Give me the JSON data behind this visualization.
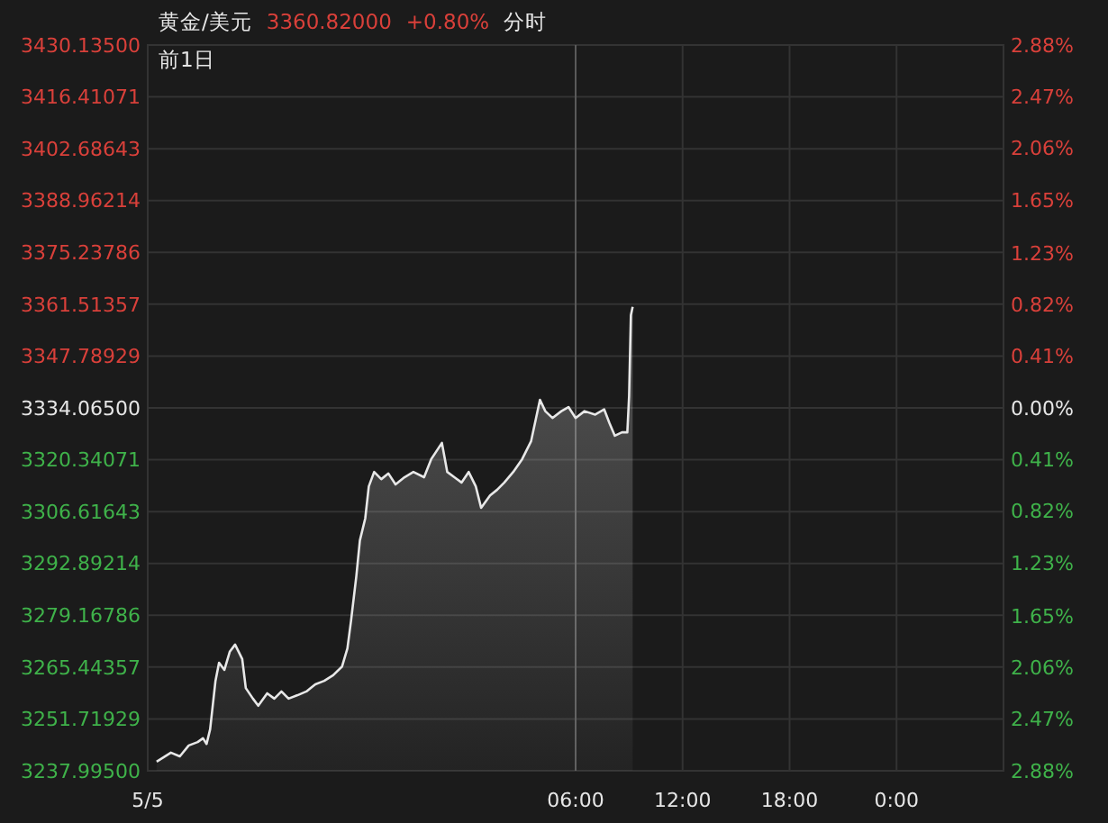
{
  "chart_data": {
    "type": "area",
    "title": "黄金/美元",
    "subtitle": "前1日",
    "annotations": [
      "3360.82000",
      "+0.80%",
      "分时"
    ],
    "x": [
      "--05-05T06:30",
      "--05-05T07:18",
      "--05-05T07:48",
      "--05-05T08:18",
      "--05-05T08:48",
      "--05-05T09:06",
      "--05-05T09:18",
      "--05-05T09:30",
      "--05-05T09:48",
      "--05-05T10:00",
      "--05-05T10:18",
      "--05-05T10:36",
      "--05-05T10:54",
      "--05-05T11:18",
      "--05-05T11:30",
      "--05-05T11:54",
      "--05-05T12:12",
      "--05-05T12:42",
      "--05-05T13:06",
      "--05-05T13:30",
      "--05-05T13:54",
      "--05-05T14:24",
      "--05-05T14:54",
      "--05-05T15:24",
      "--05-05T15:54",
      "--05-05T16:24",
      "--05-05T16:54",
      "--05-05T17:12",
      "--05-05T17:24",
      "--05-05T17:42",
      "--05-05T17:54",
      "--05-05T18:12",
      "--05-05T18:24",
      "--05-05T18:42",
      "--05-05T19:06",
      "--05-05T19:30",
      "--05-05T19:54",
      "--05-05T20:24",
      "--05-05T20:54",
      "--05-05T21:30",
      "--05-05T21:54",
      "--05-05T22:30",
      "--05-05T22:48",
      "--05-05T23:12",
      "--05-05T23:36",
      "--05-06T00:00",
      "--05-06T00:24",
      "--05-06T00:42",
      "--05-06T01:12",
      "--05-06T01:36",
      "--05-06T02:00",
      "--05-06T02:30",
      "--05-06T03:00",
      "--05-06T03:30",
      "--05-06T04:00",
      "--05-06T04:18",
      "--05-06T04:42",
      "--05-06T05:12",
      "--05-06T05:36",
      "--05-06T06:00",
      "--05-06T06:30",
      "--05-06T07:06",
      "--05-06T07:36",
      "--05-06T07:54",
      "--05-06T08:12",
      "--05-06T08:36",
      "--05-06T08:54",
      "--05-06T09:00",
      "--05-06T09:06",
      "--05-06T09:12"
    ],
    "series": [
      {
        "color": "#e8e8e8",
        "values": [
          3240.4,
          3242.8,
          3241.8,
          3244.7,
          3245.6,
          3246.6,
          3245.1,
          3249.0,
          3261.8,
          3266.6,
          3264.7,
          3269.5,
          3271.4,
          3267.6,
          3259.9,
          3257.1,
          3255.2,
          3258.5,
          3257.1,
          3259.0,
          3257.1,
          3258.0,
          3259.0,
          3260.9,
          3261.8,
          3263.3,
          3265.6,
          3270.4,
          3277.6,
          3289.5,
          3299.0,
          3304.8,
          3313.3,
          3317.1,
          3315.2,
          3316.7,
          3313.8,
          3315.7,
          3317.1,
          3315.7,
          3320.5,
          3324.8,
          3317.1,
          3315.7,
          3314.3,
          3317.1,
          3313.3,
          3307.6,
          3310.9,
          3312.4,
          3314.3,
          3317.1,
          3320.5,
          3325.2,
          3336.2,
          3333.2,
          3331.4,
          3333.2,
          3334.3,
          3331.4,
          3333.2,
          3332.3,
          3333.7,
          3330.0,
          3326.7,
          3327.6,
          3327.6,
          3337.2,
          3358.6,
          3360.8
        ]
      }
    ],
    "xlim": [
      "--05-05T06:00",
      "--05-07T06:00"
    ],
    "xticks": [
      {
        "value": "--05-05T06:00",
        "label": "5/5"
      },
      {
        "value": "--05-06T06:00",
        "label": "06:00"
      },
      {
        "value": "--05-06T12:00",
        "label": "12:00"
      },
      {
        "value": "--05-06T18:00",
        "label": "18:00"
      },
      {
        "value": "--05-07T00:00",
        "label": "0:00"
      }
    ],
    "ylim": [
      3237.995,
      3430.135
    ],
    "yticks": [
      {
        "value": 3237.995,
        "label": "3237.99500"
      },
      {
        "value": 3251.71929,
        "label": "3251.71929"
      },
      {
        "value": 3265.44357,
        "label": "3265.44357"
      },
      {
        "value": 3279.16786,
        "label": "3279.16786"
      },
      {
        "value": 3292.89214,
        "label": "3292.89214"
      },
      {
        "value": 3306.61643,
        "label": "3306.61643"
      },
      {
        "value": 3320.34071,
        "label": "3320.34071"
      },
      {
        "value": 3334.065,
        "label": "3334.06500"
      },
      {
        "value": 3347.78929,
        "label": "3347.78929"
      },
      {
        "value": 3361.51357,
        "label": "3361.51357"
      },
      {
        "value": 3375.23786,
        "label": "3375.23786"
      },
      {
        "value": 3388.96214,
        "label": "3388.96214"
      },
      {
        "value": 3402.68643,
        "label": "3402.68643"
      },
      {
        "value": 3416.41071,
        "label": "3416.41071"
      },
      {
        "value": 3430.135,
        "label": "3430.13500"
      }
    ],
    "y2lim": [
      -2.88,
      2.88
    ],
    "y2ticks": [
      {
        "value": -2.88,
        "label": "2.88%"
      },
      {
        "value": -2.47,
        "label": "2.47%"
      },
      {
        "value": -2.06,
        "label": "2.06%"
      },
      {
        "value": -1.65,
        "label": "1.65%"
      },
      {
        "value": -1.23,
        "label": "1.23%"
      },
      {
        "value": -0.82,
        "label": "0.82%"
      },
      {
        "value": -0.41,
        "label": "0.41%"
      },
      {
        "value": 0,
        "label": "0.00%"
      },
      {
        "value": 0.41,
        "label": "0.41%"
      },
      {
        "value": 0.82,
        "label": "0.82%"
      },
      {
        "value": 1.23,
        "label": "1.23%"
      },
      {
        "value": 1.65,
        "label": "1.65%"
      },
      {
        "value": 2.06,
        "label": "2.06%"
      },
      {
        "value": 2.47,
        "label": "2.47%"
      },
      {
        "value": 2.88,
        "label": "2.88%"
      }
    ],
    "ref_lines": [
      {
        "axis": "x",
        "value": "--05-06T06:00",
        "color": "#5a5a5a"
      }
    ],
    "grid": true
  }
}
